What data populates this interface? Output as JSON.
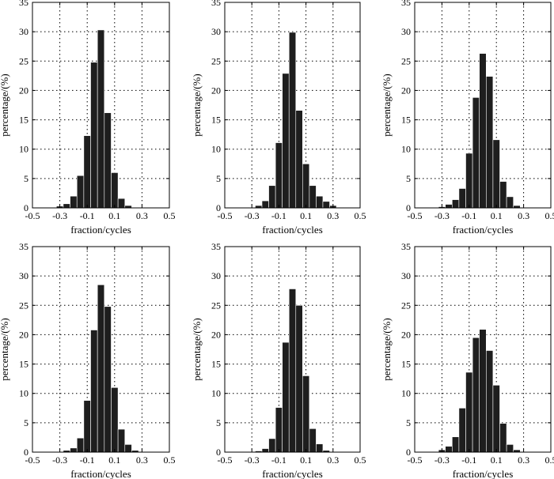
{
  "chart_data": [
    {
      "type": "bar",
      "xlabel": "fraction/cycles",
      "ylabel": "percentage/(%)",
      "xlim": [
        -0.5,
        0.5
      ],
      "ylim": [
        0,
        35
      ],
      "xticks": [
        "-0.5",
        "-0.3",
        "-0.1",
        "0.1",
        "0.3",
        "0.5"
      ],
      "yticks": [
        "0",
        "5",
        "10",
        "15",
        "20",
        "25",
        "30",
        "35"
      ],
      "grid": true,
      "bin_width": 0.05,
      "x": [
        -0.35,
        -0.3,
        -0.25,
        -0.2,
        -0.15,
        -0.1,
        -0.05,
        0.0,
        0.05,
        0.1,
        0.15,
        0.2,
        0.25,
        0.3
      ],
      "values": [
        0.1,
        0.3,
        0.7,
        2.0,
        5.5,
        12.3,
        24.8,
        30.3,
        16.2,
        6.0,
        1.6,
        0.4,
        0.1,
        0.0
      ]
    },
    {
      "type": "bar",
      "xlabel": "fraction/cycles",
      "ylabel": "percentage/(%)",
      "xlim": [
        -0.5,
        0.5
      ],
      "ylim": [
        0,
        35
      ],
      "xticks": [
        "-0.5",
        "-0.3",
        "-0.1",
        "0.1",
        "0.3",
        "0.5"
      ],
      "yticks": [
        "0",
        "5",
        "10",
        "15",
        "20",
        "25",
        "30",
        "35"
      ],
      "grid": true,
      "bin_width": 0.05,
      "x": [
        -0.3,
        -0.25,
        -0.2,
        -0.15,
        -0.1,
        -0.05,
        0.0,
        0.05,
        0.1,
        0.15,
        0.2,
        0.25,
        0.3,
        0.35
      ],
      "values": [
        0.1,
        0.4,
        1.2,
        3.8,
        11.1,
        22.9,
        29.9,
        16.6,
        7.5,
        3.8,
        2.0,
        1.1,
        0.4,
        0.1
      ]
    },
    {
      "type": "bar",
      "xlabel": "fraction/cycles",
      "ylabel": "percentage/(%)",
      "xlim": [
        -0.5,
        0.5
      ],
      "ylim": [
        0,
        35
      ],
      "xticks": [
        "-0.5",
        "-0.3",
        "-0.1",
        "0.1",
        "0.3",
        "0.5"
      ],
      "yticks": [
        "0",
        "5",
        "10",
        "15",
        "20",
        "25",
        "30",
        "35"
      ],
      "grid": true,
      "bin_width": 0.05,
      "x": [
        -0.3,
        -0.25,
        -0.2,
        -0.15,
        -0.1,
        -0.05,
        0.0,
        0.05,
        0.1,
        0.15,
        0.2,
        0.25,
        0.3
      ],
      "values": [
        0.2,
        0.6,
        1.4,
        3.3,
        9.3,
        18.8,
        26.3,
        22.4,
        11.6,
        4.5,
        1.9,
        0.4,
        0.1
      ]
    },
    {
      "type": "bar",
      "xlabel": "fraction/cycles",
      "ylabel": "percentage/(%)",
      "xlim": [
        -0.5,
        0.5
      ],
      "ylim": [
        0,
        35
      ],
      "xticks": [
        "-0.5",
        "-0.3",
        "-0.1",
        "0.1",
        "0.3",
        "0.5"
      ],
      "yticks": [
        "0",
        "5",
        "10",
        "15",
        "20",
        "25",
        "30",
        "35"
      ],
      "grid": true,
      "bin_width": 0.05,
      "x": [
        -0.3,
        -0.25,
        -0.2,
        -0.15,
        -0.1,
        -0.05,
        0.0,
        0.05,
        0.1,
        0.15,
        0.2,
        0.25
      ],
      "values": [
        0.1,
        0.3,
        0.7,
        2.4,
        8.8,
        20.8,
        28.5,
        24.8,
        11.0,
        3.9,
        1.3,
        0.3
      ]
    },
    {
      "type": "bar",
      "xlabel": "fraction/cycles",
      "ylabel": "percentage/(%)",
      "xlim": [
        -0.5,
        0.5
      ],
      "ylim": [
        0,
        35
      ],
      "xticks": [
        "-0.5",
        "-0.3",
        "-0.1",
        "0.1",
        "0.3",
        "0.5"
      ],
      "yticks": [
        "0",
        "5",
        "10",
        "15",
        "20",
        "25",
        "30",
        "35"
      ],
      "grid": true,
      "bin_width": 0.05,
      "x": [
        -0.3,
        -0.25,
        -0.2,
        -0.15,
        -0.1,
        -0.05,
        0.0,
        0.05,
        0.1,
        0.15,
        0.2,
        0.25
      ],
      "values": [
        0.1,
        0.2,
        0.6,
        2.3,
        7.6,
        18.7,
        27.8,
        25.0,
        13.0,
        4.0,
        1.4,
        0.3
      ]
    },
    {
      "type": "bar",
      "xlabel": "fraction/cycles",
      "ylabel": "percentage/(%)",
      "xlim": [
        -0.5,
        0.5
      ],
      "ylim": [
        0,
        35
      ],
      "xticks": [
        "-0.5",
        "-0.3",
        "-0.1",
        "0.1",
        "0.3",
        "0.5"
      ],
      "yticks": [
        "0",
        "5",
        "10",
        "15",
        "20",
        "25",
        "30",
        "35"
      ],
      "grid": true,
      "bin_width": 0.05,
      "x": [
        -0.35,
        -0.3,
        -0.25,
        -0.2,
        -0.15,
        -0.1,
        -0.05,
        0.0,
        0.05,
        0.1,
        0.15,
        0.2,
        0.25,
        0.3
      ],
      "values": [
        0.1,
        0.4,
        1.0,
        2.6,
        7.5,
        13.6,
        19.5,
        20.9,
        17.3,
        11.4,
        4.9,
        1.3,
        0.4,
        0.1
      ]
    }
  ]
}
